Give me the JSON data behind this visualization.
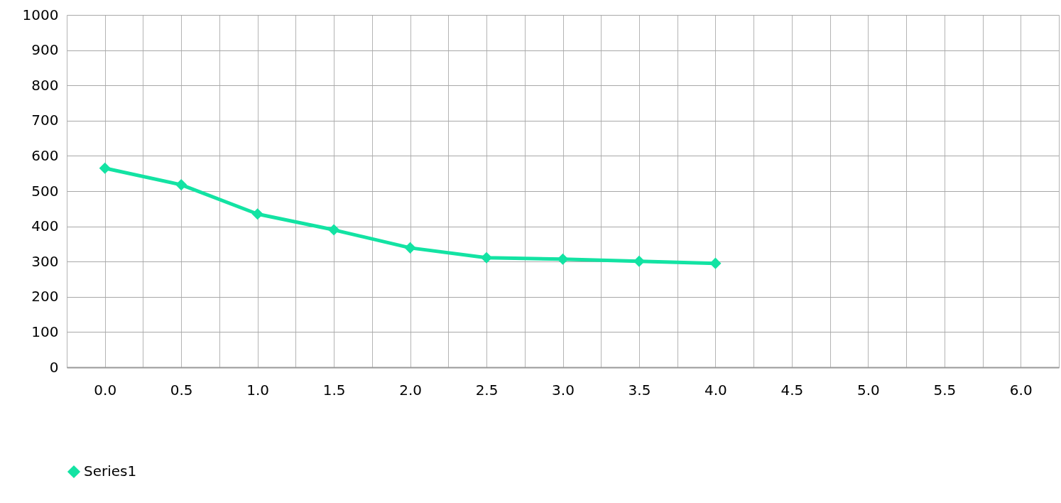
{
  "chart_data": {
    "type": "line",
    "x": [
      0,
      0.5,
      1,
      1.5,
      2,
      2.5,
      3,
      3.5,
      4
    ],
    "series": [
      {
        "name": "Series1",
        "color": "#13e3a3",
        "values": [
          565,
          518,
          435,
          390,
          339,
          311,
          307,
          301,
          295
        ]
      }
    ],
    "xlim": [
      -0.25,
      6.25
    ],
    "xticks": [
      {
        "value": -0.25,
        "label": null
      },
      {
        "value": 0,
        "label": "0.0"
      },
      {
        "value": 0.25,
        "label": null
      },
      {
        "value": 0.5,
        "label": "0.5"
      },
      {
        "value": 0.75,
        "label": null
      },
      {
        "value": 1,
        "label": "1.0"
      },
      {
        "value": 1.25,
        "label": null
      },
      {
        "value": 1.5,
        "label": "1.5"
      },
      {
        "value": 1.75,
        "label": null
      },
      {
        "value": 2,
        "label": "2.0"
      },
      {
        "value": 2.25,
        "label": null
      },
      {
        "value": 2.5,
        "label": "2.5"
      },
      {
        "value": 2.75,
        "label": null
      },
      {
        "value": 3,
        "label": "3.0"
      },
      {
        "value": 3.25,
        "label": null
      },
      {
        "value": 3.5,
        "label": "3.5"
      },
      {
        "value": 3.75,
        "label": null
      },
      {
        "value": 4,
        "label": "4.0"
      },
      {
        "value": 4.25,
        "label": null
      },
      {
        "value": 4.5,
        "label": "4.5"
      },
      {
        "value": 4.75,
        "label": null
      },
      {
        "value": 5,
        "label": "5.0"
      },
      {
        "value": 5.25,
        "label": null
      },
      {
        "value": 5.5,
        "label": "5.5"
      },
      {
        "value": 5.75,
        "label": null
      },
      {
        "value": 6,
        "label": "6.0"
      },
      {
        "value": 6.25,
        "label": null
      }
    ],
    "ylim": [
      0,
      1000
    ],
    "yticks": [
      0,
      100,
      200,
      300,
      400,
      500,
      600,
      700,
      800,
      900,
      1000
    ],
    "grid": true,
    "legend": "bottom",
    "marker": "diamond",
    "line_style": "solid"
  }
}
